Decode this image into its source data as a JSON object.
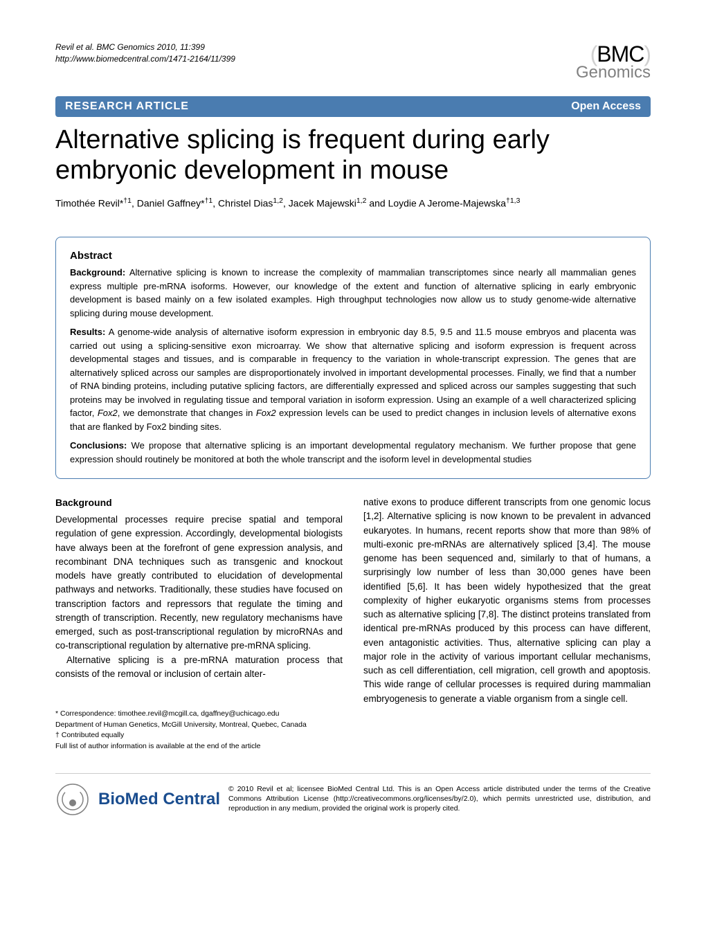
{
  "colors": {
    "bar_bg": "#4a7cb0",
    "bar_text": "#ffffff",
    "body_text": "#000000",
    "logo_grey": "#808080",
    "biomed_blue": "#1a4d8f",
    "border": "#4a7cb0"
  },
  "header": {
    "citation_line1": "Revil et al. BMC Genomics 2010, 11:399",
    "citation_line2": "http://www.biomedcentral.com/1471-2164/11/399",
    "logo_top": "BMC",
    "logo_bottom": "Genomics"
  },
  "bar": {
    "article_type": "RESEARCH ARTICLE",
    "open_access": "Open Access"
  },
  "title": "Alternative splicing is frequent during early embryonic development in mouse",
  "authors_html": "Timothée Revil*<sup>†1</sup>, Daniel Gaffney*<sup>†1</sup>, Christel Dias<sup>1,2</sup>, Jacek Majewski<sup>1,2</sup> and Loydie A Jerome-Majewska<sup>†1,3</sup>",
  "abstract": {
    "heading": "Abstract",
    "background_label": "Background:",
    "background_text": " Alternative splicing is known to increase the complexity of mammalian transcriptomes since nearly all mammalian genes express multiple pre-mRNA isoforms. However, our knowledge of the extent and function of alternative splicing in early embryonic development is based mainly on a few isolated examples. High throughput technologies now allow us to study genome-wide alternative splicing during mouse development.",
    "results_label": "Results:",
    "results_text": " A genome-wide analysis of alternative isoform expression in embryonic day 8.5, 9.5 and 11.5 mouse embryos and placenta was carried out using a splicing-sensitive exon microarray. We show that alternative splicing and isoform expression is frequent across developmental stages and tissues, and is comparable in frequency to the variation in whole-transcript expression. The genes that are alternatively spliced across our samples are disproportionately involved in important developmental processes. Finally, we find that a number of RNA binding proteins, including putative splicing factors, are differentially expressed and spliced across our samples suggesting that such proteins may be involved in regulating tissue and temporal variation in isoform expression. Using an example of a well characterized splicing factor, Fox2, we demonstrate that changes in Fox2 expression levels can be used to predict changes in inclusion levels of alternative exons that are flanked by Fox2 binding sites.",
    "conclusions_label": "Conclusions:",
    "conclusions_text": " We propose that alternative splicing is an important developmental regulatory mechanism. We further propose that gene expression should routinely be monitored at both the whole transcript and the isoform level in developmental studies"
  },
  "body": {
    "background_heading": "Background",
    "col1_para1": "Developmental processes require precise spatial and temporal regulation of gene expression. Accordingly, developmental biologists have always been at the forefront of gene expression analysis, and recombinant DNA techniques such as transgenic and knockout models have greatly contributed to elucidation of developmental pathways and networks. Traditionally, these studies have focused on transcription factors and repressors that regulate the timing and strength of transcription. Recently, new regulatory mechanisms have emerged, such as post-transcriptional regulation by microRNAs and co-transcriptional regulation by alternative pre-mRNA splicing.",
    "col1_para2": "Alternative splicing is a pre-mRNA maturation process that consists of the removal or inclusion of certain alter-",
    "col2_para1": "native exons to produce different transcripts from one genomic locus [1,2]. Alternative splicing is now known to be prevalent in advanced eukaryotes. In humans, recent reports show that more than 98% of multi-exonic pre-mRNAs are alternatively spliced [3,4]. The mouse genome has been sequenced and, similarly to that of humans, a surprisingly low number of less than 30,000 genes have been identified [5,6]. It has been widely hypothesized that the great complexity of higher eukaryotic organisms stems from processes such as alternative splicing [7,8]. The distinct proteins translated from identical pre-mRNAs produced by this process can have different, even antagonistic activities. Thus, alternative splicing can play a major role in the activity of various important cellular mechanisms, such as cell differentiation, cell migration, cell growth and apoptosis. This wide range of cellular processes is required during mammalian embryogenesis to generate a viable organism from a single cell."
  },
  "footnotes": {
    "correspondence": "* Correspondence: timothee.revil@mcgill.ca, dgaffney@uchicago.edu",
    "dept": "Department of Human Genetics, McGill University, Montreal, Quebec, Canada",
    "contrib": "† Contributed equally",
    "fulllist": "Full list of author information is available at the end of the article"
  },
  "license": {
    "text": "© 2010 Revil et al; licensee BioMed Central Ltd. This is an Open Access article distributed under the terms of the Creative Commons Attribution License (http://creativecommons.org/licenses/by/2.0), which permits unrestricted use, distribution, and reproduction in any medium, provided the original work is properly cited.",
    "logo_text": "BioMed Central"
  }
}
